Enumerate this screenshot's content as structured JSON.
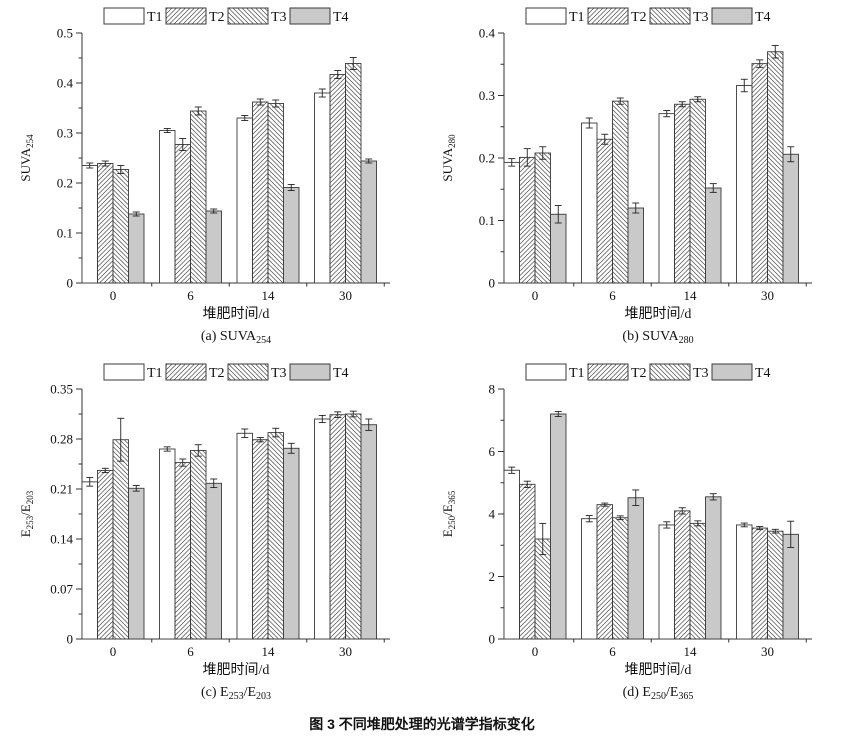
{
  "caption": "图 3  不同堆肥处理的光谱学指标变化",
  "legend": [
    "T1",
    "T2",
    "T3",
    "T4"
  ],
  "colors": {
    "bar_stroke": "#3a3a3a",
    "hatch_line": "#4a4a4a",
    "gray_fill": "#c9c9c9",
    "axis": "#333333",
    "error_bar": "#222222",
    "text": "#111111"
  },
  "chart_data": [
    {
      "type": "bar",
      "panel": "a",
      "title_segments": [
        {
          "t": "(a) SUVA"
        },
        {
          "s": "254"
        }
      ],
      "ylabel_segments": [
        {
          "t": "SUVA"
        },
        {
          "s": "254"
        }
      ],
      "xlabel": "堆肥时间/d",
      "categories": [
        "0",
        "6",
        "14",
        "30"
      ],
      "ylim": [
        0,
        0.5
      ],
      "yticks": [
        0,
        0.1,
        0.2,
        0.3,
        0.4,
        0.5
      ],
      "ytick_labels": [
        "0",
        "0.1",
        "0.2",
        "0.3",
        "0.4",
        "0.5"
      ],
      "grid": false,
      "legend_position": "top",
      "series": [
        {
          "name": "T1",
          "fill": "white",
          "values": [
            0.235,
            0.305,
            0.33,
            0.38
          ],
          "errors": [
            0.005,
            0.004,
            0.005,
            0.008
          ]
        },
        {
          "name": "T2",
          "fill": "hatch-forward",
          "values": [
            0.239,
            0.277,
            0.362,
            0.417
          ],
          "errors": [
            0.005,
            0.012,
            0.006,
            0.008
          ]
        },
        {
          "name": "T3",
          "fill": "hatch-backward",
          "values": [
            0.227,
            0.344,
            0.359,
            0.439
          ],
          "errors": [
            0.008,
            0.008,
            0.007,
            0.012
          ]
        },
        {
          "name": "T4",
          "fill": "gray",
          "values": [
            0.138,
            0.144,
            0.191,
            0.244
          ],
          "errors": [
            0.004,
            0.004,
            0.006,
            0.004
          ]
        }
      ]
    },
    {
      "type": "bar",
      "panel": "b",
      "title_segments": [
        {
          "t": "(b) SUVA"
        },
        {
          "s": "280"
        }
      ],
      "ylabel_segments": [
        {
          "t": "SUVA"
        },
        {
          "s": "280"
        }
      ],
      "xlabel": "堆肥时间/d",
      "categories": [
        "0",
        "6",
        "14",
        "30"
      ],
      "ylim": [
        0,
        0.4
      ],
      "yticks": [
        0,
        0.1,
        0.2,
        0.3,
        0.4
      ],
      "ytick_labels": [
        "0",
        "0.1",
        "0.2",
        "0.3",
        "0.4"
      ],
      "grid": false,
      "legend_position": "top",
      "series": [
        {
          "name": "T1",
          "fill": "white",
          "values": [
            0.193,
            0.256,
            0.271,
            0.316
          ],
          "errors": [
            0.006,
            0.008,
            0.005,
            0.01
          ]
        },
        {
          "name": "T2",
          "fill": "hatch-forward",
          "values": [
            0.201,
            0.23,
            0.286,
            0.351
          ],
          "errors": [
            0.014,
            0.008,
            0.004,
            0.006
          ]
        },
        {
          "name": "T3",
          "fill": "hatch-backward",
          "values": [
            0.208,
            0.291,
            0.294,
            0.37
          ],
          "errors": [
            0.01,
            0.005,
            0.004,
            0.01
          ]
        },
        {
          "name": "T4",
          "fill": "gray",
          "values": [
            0.11,
            0.12,
            0.152,
            0.206
          ],
          "errors": [
            0.014,
            0.008,
            0.007,
            0.012
          ]
        }
      ]
    },
    {
      "type": "bar",
      "panel": "c",
      "title_segments": [
        {
          "t": "(c) E"
        },
        {
          "s": "253"
        },
        {
          "t": "/E"
        },
        {
          "s": "203"
        }
      ],
      "ylabel_segments": [
        {
          "t": "E"
        },
        {
          "s": "253"
        },
        {
          "t": "/E"
        },
        {
          "s": "203"
        }
      ],
      "xlabel": "堆肥时间/d",
      "categories": [
        "0",
        "6",
        "14",
        "30"
      ],
      "ylim": [
        0,
        0.35
      ],
      "yticks": [
        0,
        0.07,
        0.14,
        0.21,
        0.28,
        0.35
      ],
      "ytick_labels": [
        "0",
        "0.07",
        "0.14",
        "0.21",
        "0.28",
        "0.35"
      ],
      "grid": false,
      "legend_position": "top",
      "series": [
        {
          "name": "T1",
          "fill": "white",
          "values": [
            0.22,
            0.266,
            0.288,
            0.308
          ],
          "errors": [
            0.006,
            0.003,
            0.006,
            0.005
          ]
        },
        {
          "name": "T2",
          "fill": "hatch-forward",
          "values": [
            0.236,
            0.247,
            0.279,
            0.314
          ],
          "errors": [
            0.003,
            0.005,
            0.003,
            0.004
          ]
        },
        {
          "name": "T3",
          "fill": "hatch-backward",
          "values": [
            0.279,
            0.264,
            0.289,
            0.315
          ],
          "errors": [
            0.03,
            0.008,
            0.006,
            0.004
          ]
        },
        {
          "name": "T4",
          "fill": "gray",
          "values": [
            0.211,
            0.218,
            0.267,
            0.3
          ],
          "errors": [
            0.004,
            0.006,
            0.007,
            0.008
          ]
        }
      ]
    },
    {
      "type": "bar",
      "panel": "d",
      "title_segments": [
        {
          "t": "(d) E"
        },
        {
          "s": "250"
        },
        {
          "t": "/E"
        },
        {
          "s": "365"
        }
      ],
      "ylabel_segments": [
        {
          "t": "E"
        },
        {
          "s": "250"
        },
        {
          "t": "/E"
        },
        {
          "s": "365"
        }
      ],
      "xlabel": "堆肥时间/d",
      "categories": [
        "0",
        "6",
        "14",
        "30"
      ],
      "ylim": [
        0,
        8
      ],
      "yticks": [
        0,
        2,
        4,
        6,
        8
      ],
      "ytick_labels": [
        "0",
        "2",
        "4",
        "6",
        "8"
      ],
      "grid": false,
      "legend_position": "top",
      "series": [
        {
          "name": "T1",
          "fill": "white",
          "values": [
            5.4,
            3.85,
            3.65,
            3.65
          ],
          "errors": [
            0.1,
            0.1,
            0.1,
            0.06
          ]
        },
        {
          "name": "T2",
          "fill": "hatch-forward",
          "values": [
            4.95,
            4.3,
            4.1,
            3.55
          ],
          "errors": [
            0.1,
            0.05,
            0.1,
            0.05
          ]
        },
        {
          "name": "T3",
          "fill": "hatch-backward",
          "values": [
            3.2,
            3.88,
            3.7,
            3.45
          ],
          "errors": [
            0.5,
            0.06,
            0.08,
            0.06
          ]
        },
        {
          "name": "T4",
          "fill": "gray",
          "values": [
            7.2,
            4.52,
            4.55,
            3.35
          ],
          "errors": [
            0.08,
            0.25,
            0.1,
            0.42
          ]
        }
      ]
    }
  ]
}
